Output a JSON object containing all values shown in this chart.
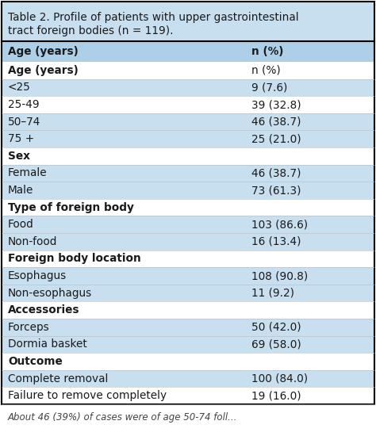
{
  "title_line1": "Table 2. Profile of patients with upper gastrointestinal",
  "title_line2": "tract foreign bodies (n = 119).",
  "col1_header": "Age (years)",
  "col2_header": "n (%)",
  "rows": [
    {
      "label": "Age (years)",
      "value": "n (%)",
      "bold": true,
      "is_col_header": true
    },
    {
      "label": "<25",
      "value": "9 (7.6)",
      "bold": false,
      "is_header": false
    },
    {
      "label": "25-49",
      "value": "39 (32.8)",
      "bold": false,
      "is_header": false
    },
    {
      "label": "50–74",
      "value": "46 (38.7)",
      "bold": false,
      "is_header": false
    },
    {
      "label": "75 +",
      "value": "25 (21.0)",
      "bold": false,
      "is_header": false
    },
    {
      "label": "Sex",
      "value": "",
      "bold": true,
      "is_header": true
    },
    {
      "label": "Female",
      "value": "46 (38.7)",
      "bold": false,
      "is_header": false
    },
    {
      "label": "Male",
      "value": "73 (61.3)",
      "bold": false,
      "is_header": false
    },
    {
      "label": "Type of foreign body",
      "value": "",
      "bold": true,
      "is_header": true
    },
    {
      "label": "Food",
      "value": "103 (86.6)",
      "bold": false,
      "is_header": false
    },
    {
      "label": "Non-food",
      "value": "16 (13.4)",
      "bold": false,
      "is_header": false
    },
    {
      "label": "Foreign body location",
      "value": "",
      "bold": true,
      "is_header": true
    },
    {
      "label": "Esophagus",
      "value": "108 (90.8)",
      "bold": false,
      "is_header": false
    },
    {
      "label": "Non-esophagus",
      "value": "11 (9.2)",
      "bold": false,
      "is_header": false
    },
    {
      "label": "Accessories",
      "value": "",
      "bold": true,
      "is_header": true
    },
    {
      "label": "Forceps",
      "value": "50 (42.0)",
      "bold": false,
      "is_header": false
    },
    {
      "label": "Dormia basket",
      "value": "69 (58.0)",
      "bold": false,
      "is_header": false
    },
    {
      "label": "Outcome",
      "value": "",
      "bold": true,
      "is_header": true
    },
    {
      "label": "Complete removal",
      "value": "100 (84.0)",
      "bold": false,
      "is_header": false
    },
    {
      "label": "Failure to remove completely",
      "value": "19 (16.0)",
      "bold": false,
      "is_header": false
    }
  ],
  "title_bg": "#c8dff0",
  "col_header_bg": "#aecfe8",
  "row_bg_light": "#c8dff0",
  "row_bg_white": "#ffffff",
  "section_bg": "#c8dff0",
  "border_color": "#000000",
  "text_color": "#1a1a1a",
  "title_fontsize": 9.8,
  "font_size": 9.8,
  "footer_text": "About 46 (39%) of cases were of age 50-74 foll...",
  "figsize": [
    4.74,
    5.5
  ],
  "dpi": 100
}
